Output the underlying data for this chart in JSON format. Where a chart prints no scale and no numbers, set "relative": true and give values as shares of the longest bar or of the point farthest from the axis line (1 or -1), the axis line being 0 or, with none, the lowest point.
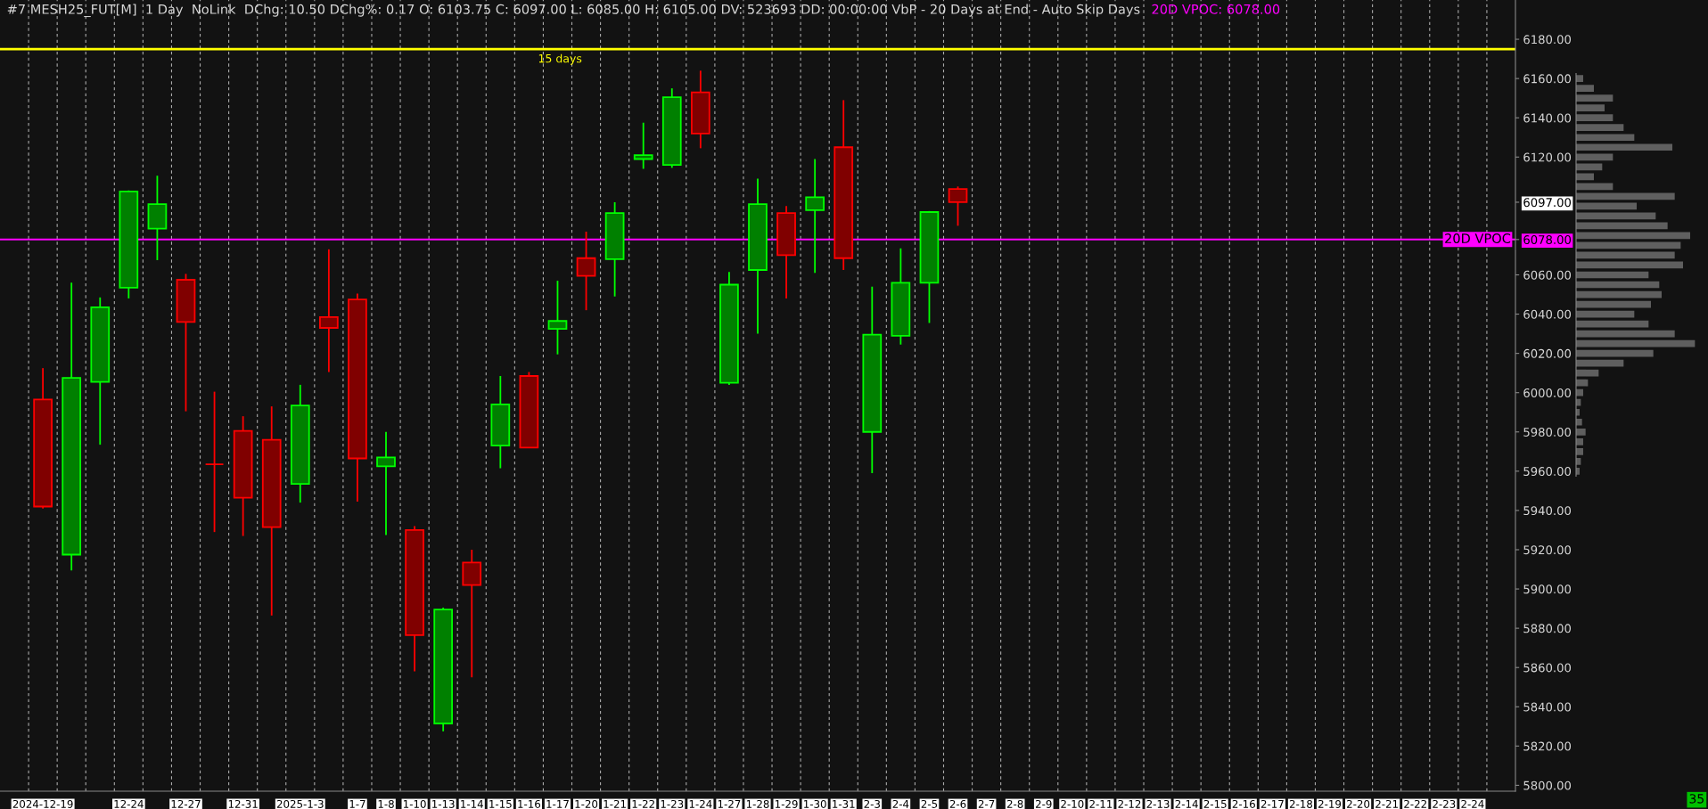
{
  "chart_data": [
    {
      "type": "candlestick",
      "title": "#7 MESH25_FUT[M]  1 Day  NoLink  DChg: 10.50 DChg%: 0.17 O: 6103.75 C: 6097.00 L: 6085.00 H: 6105.00 DV: 523693 DD: 00:00:00 VbP - 20 Days at End - Auto Skip Days",
      "subtitle": "20D VPOC: 6078.00",
      "categories": [
        "2024-12-19",
        null,
        null,
        "12-24",
        null,
        "12-27",
        null,
        "12-31",
        null,
        "2025-1-3",
        null,
        "1-7",
        "1-8",
        "1-10",
        "1-13",
        "1-14",
        "1-15",
        "1-16",
        "1-17",
        "1-20",
        "1-21",
        "1-22",
        "1-23",
        "1-24",
        "1-27",
        "1-28",
        "1-29",
        "1-30",
        "1-31",
        "2-3",
        "2-4",
        "2-5",
        "2-6",
        "2-7",
        "2-8",
        "2-9",
        "2-10",
        "2-11",
        "2-12",
        "2-13",
        "2-14",
        "2-15",
        "2-16",
        "2-17",
        "2-18",
        "2-19",
        "2-20",
        "2-21",
        "2-22",
        "2-23",
        "2-24"
      ],
      "ohlc": [
        [
          5996.5,
          6012.5,
          5941,
          5942
        ],
        [
          5917.5,
          6056,
          5909.5,
          6007.5
        ],
        [
          6005.5,
          6048.5,
          5973.5,
          6043.5
        ],
        [
          6053.5,
          6103,
          6048,
          6102.5
        ],
        [
          6083.5,
          6110.5,
          6067.5,
          6096
        ],
        [
          6057.5,
          6060.5,
          5990.5,
          6036
        ],
        [
          5963.5,
          6000.5,
          5929,
          5963.5
        ],
        [
          5980.5,
          5988,
          5927,
          5946.5
        ],
        [
          5976,
          5993,
          5886.5,
          5931.5
        ],
        [
          5953.5,
          6004,
          5944,
          5993.5
        ],
        [
          6038.5,
          6073,
          6010.5,
          6033
        ],
        [
          6047.5,
          6050.5,
          5944.5,
          5966.5
        ],
        [
          5962.5,
          5980,
          5927.5,
          5967
        ],
        [
          5930,
          5932,
          5858,
          5876.5
        ],
        [
          5831.5,
          5890.5,
          5827.5,
          5889.5
        ],
        [
          5913.5,
          5920,
          5855,
          5902
        ],
        [
          5973,
          6008.5,
          5961.5,
          5994
        ],
        [
          6008.5,
          6010.5,
          5972,
          5972
        ],
        [
          6032.5,
          6057,
          6019.5,
          6036.5
        ],
        [
          6068.5,
          6082,
          6042,
          6059.5
        ],
        [
          6068,
          6097,
          6049,
          6091.5
        ],
        [
          6119,
          6137.5,
          6114,
          6121
        ],
        [
          6116,
          6155,
          6114.5,
          6150.5
        ],
        [
          6153,
          6164,
          6124.5,
          6132
        ],
        [
          6005,
          6061.5,
          6004,
          6055
        ],
        [
          6062.5,
          6109,
          6030,
          6096
        ],
        [
          6091.5,
          6095,
          6048,
          6070
        ],
        [
          6093,
          6119,
          6061,
          6099.5
        ],
        [
          6125,
          6149,
          6062.5,
          6068.5
        ],
        [
          5980,
          6054,
          5959,
          6029.5
        ],
        [
          6029,
          6073.5,
          6024.5,
          6056
        ],
        [
          6056,
          6092.5,
          6035.5,
          6092
        ],
        [
          6103.75,
          6105,
          6085,
          6097
        ],
        null,
        null,
        null,
        null,
        null,
        null,
        null,
        null,
        null,
        null,
        null,
        null,
        null,
        null,
        null,
        null,
        null,
        null
      ],
      "colors": [
        "#ff0000",
        "#00ff00",
        "#00ff00",
        "#00ff00",
        "#00ff00",
        "#ff0000",
        "#ff0000",
        "#ff0000",
        "#ff0000",
        "#00ff00",
        "#ff0000",
        "#ff0000",
        "#00ff00",
        "#ff0000",
        "#00ff00",
        "#ff0000",
        "#00ff00",
        "#ff0000",
        "#00ff00",
        "#ff0000",
        "#00ff00",
        "#00ff00",
        "#00ff00",
        "#ff0000",
        "#00ff00",
        "#00ff00",
        "#ff0000",
        "#00ff00",
        "#ff0000",
        "#00ff00",
        "#00ff00",
        "#00ff00",
        "#ff0000",
        null,
        null,
        null,
        null,
        null,
        null,
        null,
        null,
        null,
        null,
        null,
        null,
        null,
        null,
        null,
        null,
        null,
        null
      ],
      "ylim": [
        5797,
        6200
      ],
      "yticks": [
        {
          "value": 5800,
          "label": "5800.00"
        },
        {
          "value": 5820,
          "label": "5820.00"
        },
        {
          "value": 5840,
          "label": "5840.00"
        },
        {
          "value": 5860,
          "label": "5860.00"
        },
        {
          "value": 5880,
          "label": "5880.00"
        },
        {
          "value": 5900,
          "label": "5900.00"
        },
        {
          "value": 5920,
          "label": "5920.00"
        },
        {
          "value": 5940,
          "label": "5940.00"
        },
        {
          "value": 5960,
          "label": "5960.00"
        },
        {
          "value": 5980,
          "label": "5980.00"
        },
        {
          "value": 6000,
          "label": "6000.00"
        },
        {
          "value": 6020,
          "label": "6020.00"
        },
        {
          "value": 6040,
          "label": "6040.00"
        },
        {
          "value": 6060,
          "label": "6060.00"
        },
        {
          "value": 6078,
          "label": "6078.00"
        },
        {
          "value": 6097,
          "label": "6097.00"
        },
        {
          "value": 6120,
          "label": "6120.00"
        },
        {
          "value": 6140,
          "label": "6140.00"
        },
        {
          "value": 6160,
          "label": "6160.00"
        },
        {
          "value": 6180,
          "label": "6180.00"
        }
      ],
      "grid": "x",
      "ref_lines": [
        {
          "axis": "y",
          "value": 6078,
          "label": "20D VPOC",
          "color": "#ff00ff"
        },
        {
          "axis": "y",
          "value": 6175,
          "label": "15 days",
          "color": "#ffff00"
        }
      ],
      "annotations": [
        "35"
      ]
    },
    {
      "type": "bar",
      "orientation": "horizontal",
      "relative": true,
      "color": "#5f5f5f",
      "categories": [
        null,
        null,
        null,
        null,
        null,
        null,
        null,
        null,
        null,
        null,
        null,
        null,
        null,
        null,
        null,
        null,
        null,
        null,
        null,
        null,
        null,
        null,
        null,
        null,
        null,
        null,
        null,
        null,
        null,
        null,
        null,
        null,
        null,
        null,
        null,
        null,
        null,
        null,
        null,
        null,
        null
      ],
      "values": [
        0.06,
        0.15,
        0.31,
        0.24,
        0.31,
        0.4,
        0.49,
        0.81,
        0.31,
        0.22,
        0.15,
        0.31,
        0.83,
        0.51,
        0.67,
        0.77,
        0.96,
        0.88,
        0.83,
        0.9,
        0.61,
        0.7,
        0.72,
        0.63,
        0.49,
        0.61,
        0.83,
        1,
        0.65,
        0.4,
        0.19,
        0.1,
        0.06,
        0.04,
        0.03,
        0.05,
        0.08,
        0.06,
        0.06,
        0.04,
        0.03
      ]
    }
  ]
}
